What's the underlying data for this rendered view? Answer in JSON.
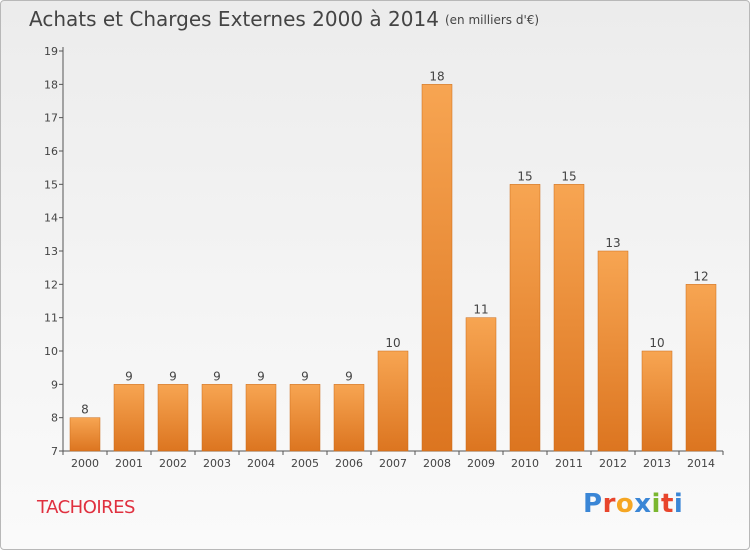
{
  "header": {
    "title": "Achats et Charges Externes 2000 à 2014",
    "subtitle": "(en milliers d'€)"
  },
  "footer": {
    "town": "TACHOIRES",
    "logo_text": "Proxiti"
  },
  "colors": {
    "bar_top": "#f7a552",
    "bar_bottom": "#dc7520",
    "town": "#e0303f"
  },
  "chart_data": {
    "type": "bar",
    "title": "Achats et Charges Externes 2000 à 2014",
    "subtitle": "(en milliers d'€)",
    "xlabel": "",
    "ylabel": "",
    "categories": [
      "2000",
      "2001",
      "2002",
      "2003",
      "2004",
      "2005",
      "2006",
      "2007",
      "2008",
      "2009",
      "2010",
      "2011",
      "2012",
      "2013",
      "2014"
    ],
    "values": [
      8,
      9,
      9,
      9,
      9,
      9,
      9,
      10,
      18,
      11,
      15,
      15,
      13,
      10,
      12
    ],
    "data_labels": [
      "8",
      "9",
      "9",
      "9",
      "9",
      "9",
      "9",
      "10",
      "18",
      "11",
      "15",
      "15",
      "13",
      "10",
      "12"
    ],
    "ylim": [
      7,
      19
    ],
    "yticks": [
      7,
      8,
      9,
      10,
      11,
      12,
      13,
      14,
      15,
      16,
      17,
      18,
      19
    ],
    "grid": false,
    "legend": "none"
  }
}
